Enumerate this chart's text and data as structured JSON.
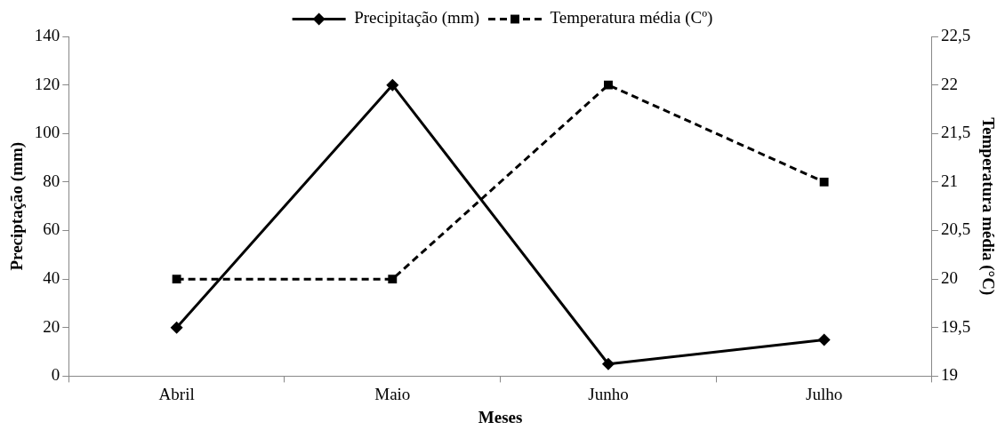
{
  "chart_data": {
    "type": "line",
    "xlabel": "Meses",
    "ylabel": "Preciptação (mm)",
    "y2label": "Temperatura média (°C)",
    "categories": [
      "Abril",
      "Maio",
      "Junho",
      "Julho"
    ],
    "series": [
      {
        "name": "Precipitação (mm)",
        "color": "#000000",
        "values": [
          20,
          120,
          5,
          15
        ],
        "marker": "diamond",
        "line_style": "solid"
      },
      {
        "name": "Temperatura média (Cº)",
        "color": "#000000",
        "values": [
          20,
          20,
          22,
          21
        ],
        "axis": "y2",
        "marker": "square",
        "line_style": "dashed"
      }
    ],
    "ylim": [
      0,
      140
    ],
    "yticks": [
      0,
      20,
      40,
      60,
      80,
      100,
      120,
      140
    ],
    "y2lim": [
      19,
      22.5
    ],
    "y2ticks": [
      {
        "value": 19,
        "label": "19"
      },
      {
        "value": 19.5,
        "label": "19,5"
      },
      {
        "value": 20,
        "label": "20"
      },
      {
        "value": 20.5,
        "label": "20,5"
      },
      {
        "value": 21,
        "label": "21"
      },
      {
        "value": 21.5,
        "label": "21,5"
      },
      {
        "value": 22,
        "label": "22"
      },
      {
        "value": 22.5,
        "label": "22,5"
      }
    ],
    "grid": false,
    "legend": "top"
  }
}
